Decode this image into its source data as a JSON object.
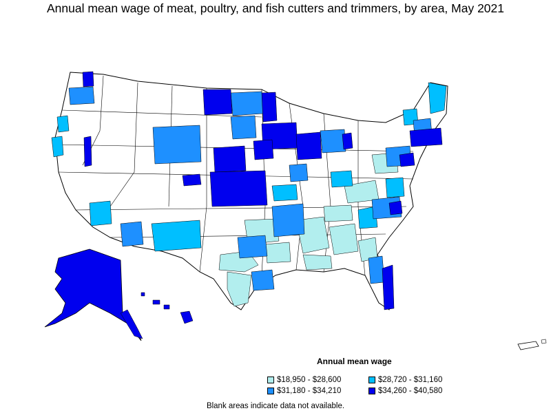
{
  "title": "Annual mean wage of meat, poultry, and fish cutters and trimmers, by area, May 2021",
  "legend": {
    "title": "Annual mean wage",
    "items": [
      {
        "label": "$18,950 - $28,600",
        "color": "#b2eeee"
      },
      {
        "label": "$28,720 - $31,160",
        "color": "#00bfff"
      },
      {
        "label": "$31,180 - $34,210",
        "color": "#1e90ff"
      },
      {
        "label": "$34,260 - $40,580",
        "color": "#0000ee"
      }
    ]
  },
  "note": "Blank areas indicate data not available."
}
